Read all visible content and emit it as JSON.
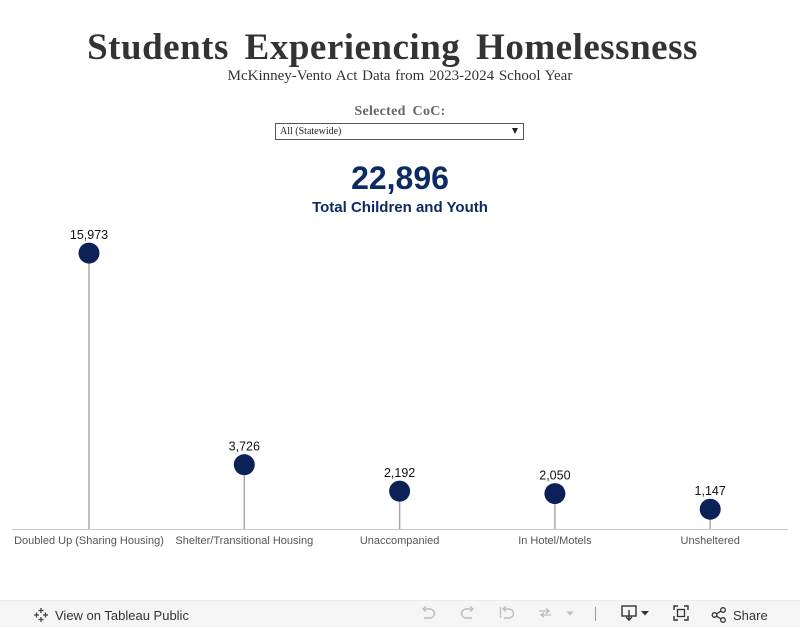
{
  "header": {
    "title": "Students Experiencing Homelessness",
    "subtitle": "McKinney-Vento Act Data from 2023-2024 School Year"
  },
  "filter": {
    "label": "Selected CoC:",
    "value": "All (Statewide)"
  },
  "kpi": {
    "value": "22,896",
    "label": "Total Children and Youth"
  },
  "chart_data": {
    "type": "scatter",
    "style": "lollipop",
    "title": "",
    "xlabel": "",
    "ylabel": "",
    "categories": [
      "Doubled Up (Sharing Housing)",
      "Shelter/Transitional Housing",
      "Unaccompanied",
      "In Hotel/Motels",
      "Unsheltered"
    ],
    "values": [
      15973,
      3726,
      2192,
      2050,
      1147
    ],
    "data_labels": [
      "15,973",
      "3,726",
      "2,192",
      "2,050",
      "1,147"
    ],
    "ylim": [
      0,
      16500
    ],
    "grid": false,
    "legend": "none",
    "colors": {
      "marker": "#0c2158",
      "stem": "#aaaaaa",
      "axis": "#c8c8c8",
      "label": "#111111",
      "category": "#555555"
    }
  },
  "toolbar": {
    "view_label": "View on Tableau Public",
    "share_label": "Share",
    "icons": [
      "tableau-icon",
      "undo-icon",
      "redo-icon",
      "revert-icon",
      "refresh-icon",
      "refresh-dropdown-icon",
      "download-icon",
      "fullscreen-icon",
      "share-icon"
    ]
  }
}
